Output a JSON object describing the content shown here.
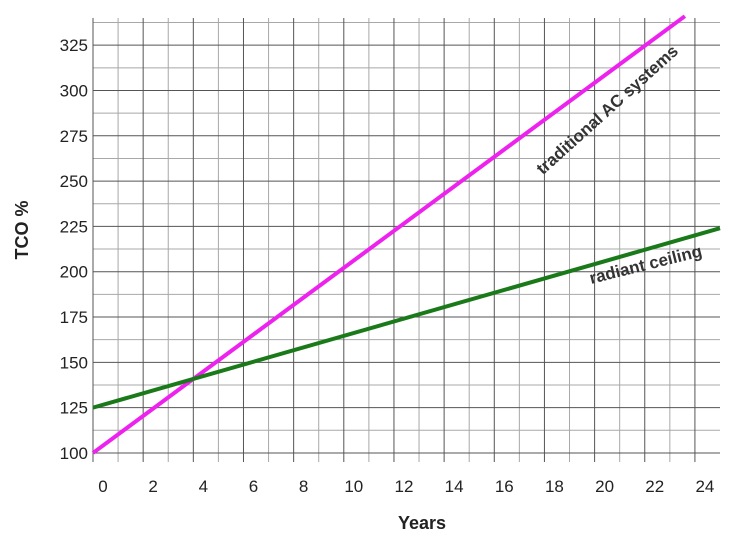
{
  "chart_data": {
    "type": "line",
    "title": "",
    "xlabel": "Years",
    "ylabel": "TCO %",
    "xlim": [
      0,
      25
    ],
    "ylim": [
      95,
      340
    ],
    "x_ticks": [
      0,
      2,
      4,
      6,
      8,
      10,
      12,
      14,
      16,
      18,
      20,
      22,
      24
    ],
    "y_ticks": [
      100,
      125,
      150,
      175,
      200,
      225,
      250,
      275,
      300,
      325
    ],
    "x_tick_labels": [
      "0",
      "2",
      "4",
      "6",
      "8",
      "10",
      "12",
      "14",
      "16",
      "18",
      "20",
      "22",
      "24"
    ],
    "y_tick_labels": [
      "100",
      "125",
      "150",
      "175",
      "200",
      "225",
      "250",
      "275",
      "300",
      "325"
    ],
    "grid": true,
    "series": [
      {
        "name": "traditional AC systems",
        "color": "#ee22ee",
        "x": [
          0,
          23.6
        ],
        "y": [
          100,
          341
        ]
      },
      {
        "name": "radiant ceiling",
        "color": "#1a7a1a",
        "x": [
          0,
          25
        ],
        "y": [
          125,
          224
        ]
      }
    ]
  }
}
